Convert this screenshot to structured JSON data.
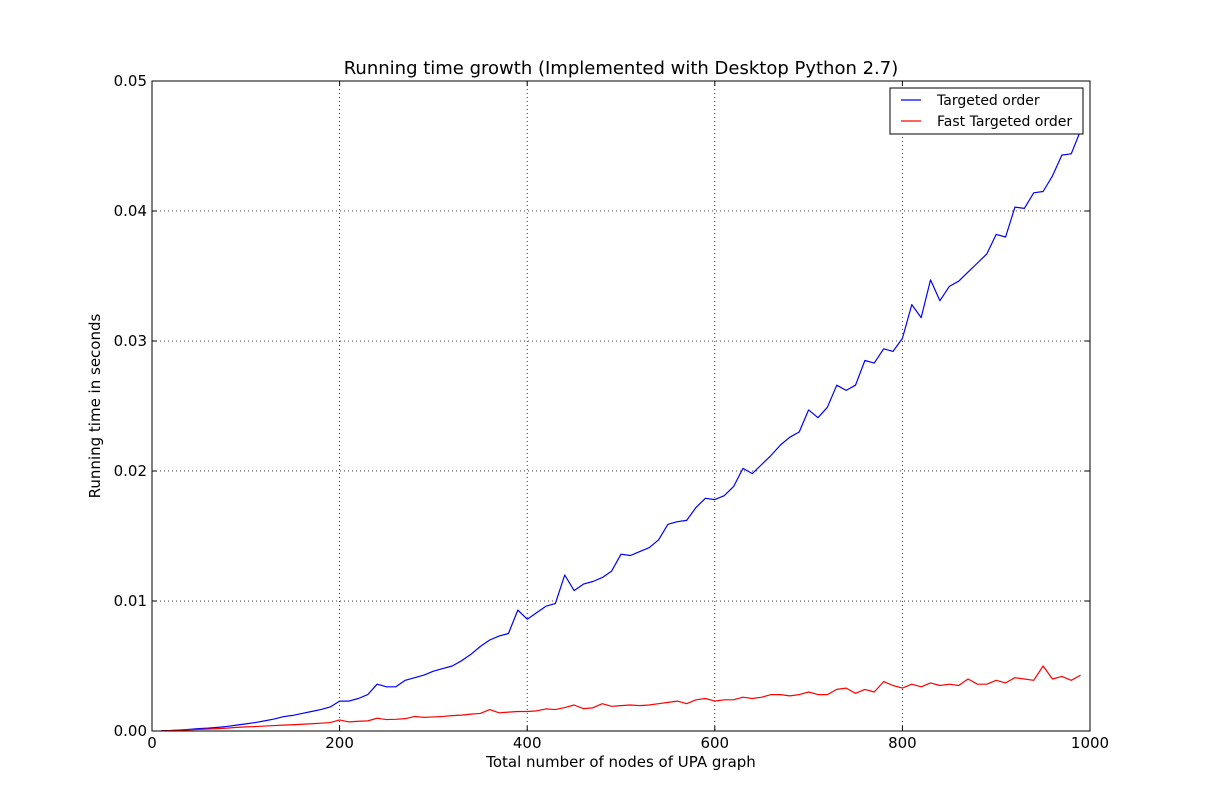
{
  "chart_data": {
    "type": "line",
    "title": "Running time growth (Implemented with Desktop Python 2.7)",
    "xlabel": "Total number of nodes of UPA graph",
    "ylabel": "Running time in seconds",
    "xlim": [
      0,
      1000
    ],
    "ylim": [
      0,
      0.05
    ],
    "xticks": [
      0,
      200,
      400,
      600,
      800,
      1000
    ],
    "xtick_labels": [
      "0",
      "200",
      "400",
      "600",
      "800",
      "1000"
    ],
    "yticks": [
      0,
      0.01,
      0.02,
      0.03,
      0.04,
      0.05
    ],
    "ytick_labels": [
      "0.00",
      "0.01",
      "0.02",
      "0.03",
      "0.04",
      "0.05"
    ],
    "grid": true,
    "legend_position": "top-right",
    "x": [
      10,
      20,
      30,
      40,
      50,
      60,
      70,
      80,
      90,
      100,
      110,
      120,
      130,
      140,
      150,
      160,
      170,
      180,
      190,
      200,
      210,
      220,
      230,
      240,
      250,
      260,
      270,
      280,
      290,
      300,
      310,
      320,
      330,
      340,
      350,
      360,
      370,
      380,
      390,
      400,
      410,
      420,
      430,
      440,
      450,
      460,
      470,
      480,
      490,
      500,
      510,
      520,
      530,
      540,
      550,
      560,
      570,
      580,
      590,
      600,
      610,
      620,
      630,
      640,
      650,
      660,
      670,
      680,
      690,
      700,
      710,
      720,
      730,
      740,
      750,
      760,
      770,
      780,
      790,
      800,
      810,
      820,
      830,
      840,
      850,
      860,
      870,
      880,
      890,
      900,
      910,
      920,
      930,
      940,
      950,
      960,
      970,
      980,
      990
    ],
    "series": [
      {
        "name": "Targeted order",
        "color": "#0000ff",
        "values": [
          2e-05,
          4e-05,
          8e-05,
          0.00013,
          0.00018,
          0.00022,
          0.00028,
          0.00035,
          0.00045,
          0.00055,
          0.00065,
          0.00078,
          0.00092,
          0.0011,
          0.0012,
          0.00135,
          0.0015,
          0.00165,
          0.00185,
          0.0023,
          0.0023,
          0.0025,
          0.0028,
          0.0036,
          0.0034,
          0.0034,
          0.0039,
          0.0041,
          0.0043,
          0.0046,
          0.0048,
          0.005,
          0.0054,
          0.0059,
          0.0065,
          0.007,
          0.0073,
          0.0075,
          0.0093,
          0.0086,
          0.0091,
          0.0096,
          0.0098,
          0.012,
          0.0108,
          0.0113,
          0.0115,
          0.0118,
          0.0123,
          0.0136,
          0.0135,
          0.0138,
          0.0141,
          0.0147,
          0.0159,
          0.0161,
          0.0162,
          0.0172,
          0.0179,
          0.0178,
          0.0181,
          0.0188,
          0.0202,
          0.0198,
          0.0205,
          0.0212,
          0.022,
          0.0226,
          0.023,
          0.0247,
          0.0241,
          0.0249,
          0.0266,
          0.0262,
          0.0266,
          0.0285,
          0.0283,
          0.0294,
          0.0292,
          0.0302,
          0.0328,
          0.0318,
          0.0347,
          0.0331,
          0.0342,
          0.0346,
          0.0353,
          0.036,
          0.0367,
          0.0382,
          0.038,
          0.0403,
          0.0402,
          0.0414,
          0.0415,
          0.0427,
          0.0443,
          0.0444,
          0.0462
        ]
      },
      {
        "name": "Fast Targeted order",
        "color": "#ff0000",
        "values": [
          1e-05,
          3e-05,
          6e-05,
          9e-05,
          0.00012,
          0.00015,
          0.00018,
          0.00022,
          0.00028,
          0.00032,
          0.00034,
          0.00038,
          0.00042,
          0.00045,
          0.00048,
          0.00052,
          0.00056,
          0.0006,
          0.00065,
          0.00085,
          0.0007,
          0.00075,
          0.00078,
          0.00098,
          0.00088,
          0.0009,
          0.00095,
          0.00112,
          0.00105,
          0.00108,
          0.00112,
          0.00118,
          0.00122,
          0.0013,
          0.00135,
          0.00165,
          0.0014,
          0.00145,
          0.0015,
          0.0015,
          0.00155,
          0.0017,
          0.00165,
          0.0018,
          0.002,
          0.00172,
          0.00178,
          0.0021,
          0.0019,
          0.00195,
          0.002,
          0.00195,
          0.002,
          0.0021,
          0.0022,
          0.0023,
          0.0021,
          0.0024,
          0.0025,
          0.0023,
          0.0024,
          0.0024,
          0.0026,
          0.0025,
          0.0026,
          0.0028,
          0.0028,
          0.0027,
          0.0028,
          0.003,
          0.0028,
          0.0028,
          0.0032,
          0.0033,
          0.0029,
          0.0032,
          0.003,
          0.0038,
          0.0035,
          0.0033,
          0.0036,
          0.0034,
          0.0037,
          0.0035,
          0.0036,
          0.0035,
          0.004,
          0.0036,
          0.0036,
          0.0039,
          0.0037,
          0.0041,
          0.004,
          0.0039,
          0.005,
          0.004,
          0.0042,
          0.0039,
          0.0043
        ]
      }
    ]
  }
}
